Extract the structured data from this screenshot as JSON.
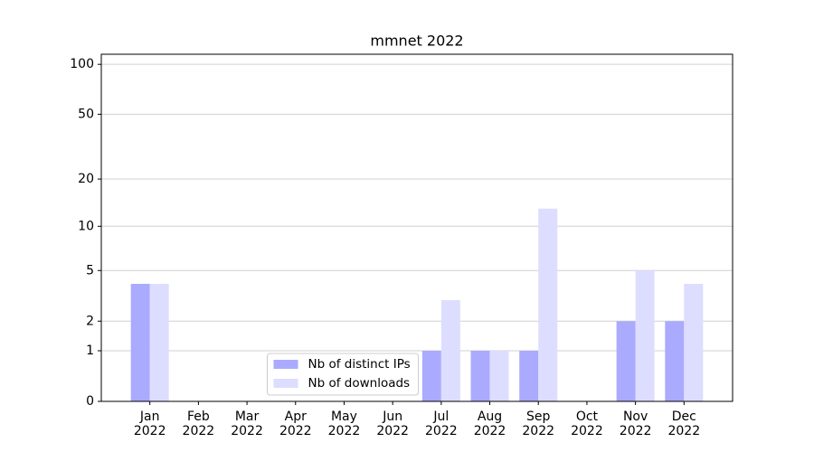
{
  "chart_data": {
    "type": "bar",
    "title": "mmnet 2022",
    "categories": [
      "Jan\n2022",
      "Feb\n2022",
      "Mar\n2022",
      "Apr\n2022",
      "May\n2022",
      "Jun\n2022",
      "Jul\n2022",
      "Aug\n2022",
      "Sep\n2022",
      "Oct\n2022",
      "Nov\n2022",
      "Dec\n2022"
    ],
    "series": [
      {
        "name": "Nb of distinct IPs",
        "color": "#aaaaff",
        "values": [
          4,
          0,
          0,
          0,
          0,
          0,
          1,
          1,
          1,
          0,
          2,
          2
        ]
      },
      {
        "name": "Nb of downloads",
        "color": "#ddddff",
        "values": [
          4,
          0,
          0,
          0,
          0,
          0,
          3,
          1,
          13,
          0,
          5,
          4
        ]
      }
    ],
    "yscale": "log1p",
    "ylim": [
      0,
      115
    ],
    "yticks": [
      0,
      1,
      2,
      5,
      10,
      20,
      50,
      100
    ],
    "grid": true,
    "legend": "lower center"
  }
}
